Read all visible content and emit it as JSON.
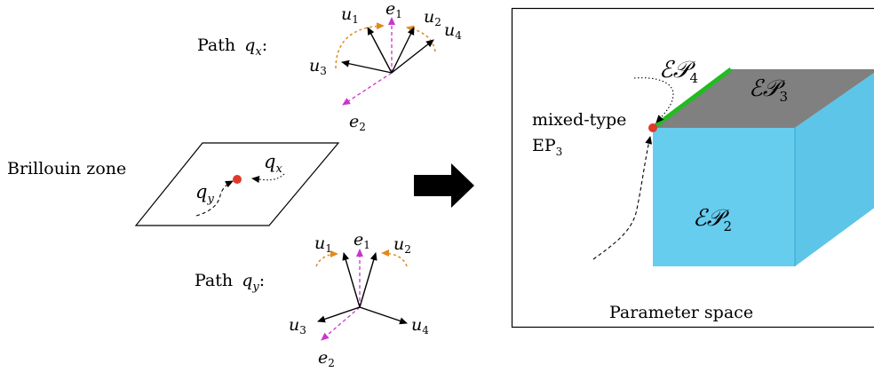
{
  "labels": {
    "path_qx_word": "Path",
    "path_qx_var": "q",
    "path_qx_sub": "x",
    "path_qy_word": "Path",
    "path_qy_var": "q",
    "path_qy_sub": "y",
    "bz": "Brillouin zone",
    "bz_qx_var": "q",
    "bz_qx_sub": "x",
    "bz_qy_var": "q",
    "bz_qy_sub": "y",
    "mixed_type": "mixed-type",
    "ep3_main": "EP",
    "ep3_sub": "3",
    "param_space": "Parameter space",
    "ep_script": "ℰ𝒫",
    "ep4_sub": "4",
    "ep3_region_sub": "3",
    "ep2_sub": "2",
    "qx_u1": "u",
    "qx_u1_sub": "1",
    "qx_e1": "e",
    "qx_e1_sub": "1",
    "qx_u2": "u",
    "qx_u2_sub": "2",
    "qx_u4": "u",
    "qx_u4_sub": "4",
    "qx_u3": "u",
    "qx_u3_sub": "3",
    "qx_e2": "e",
    "qx_e2_sub": "2",
    "qy_u1": "u",
    "qy_u1_sub": "1",
    "qy_e1": "e",
    "qy_e1_sub": "1",
    "qy_u2": "u",
    "qy_u2_sub": "2",
    "qy_u3": "u",
    "qy_u3_sub": "3",
    "qy_u4": "u",
    "qy_u4_sub": "4",
    "qy_e2": "e",
    "qy_e2_sub": "2"
  },
  "colors": {
    "vector": "#000000",
    "basis_dashed": "#cc33cc",
    "rotation_arc": "#e08a1e",
    "ep_point": "#e03a2a",
    "ep4_edge": "#22bb22",
    "ep3_face": "#808080",
    "ep2_face": "#66cdee",
    "ep2_side": "#5cc5e8",
    "arrow_fill": "#000000"
  }
}
